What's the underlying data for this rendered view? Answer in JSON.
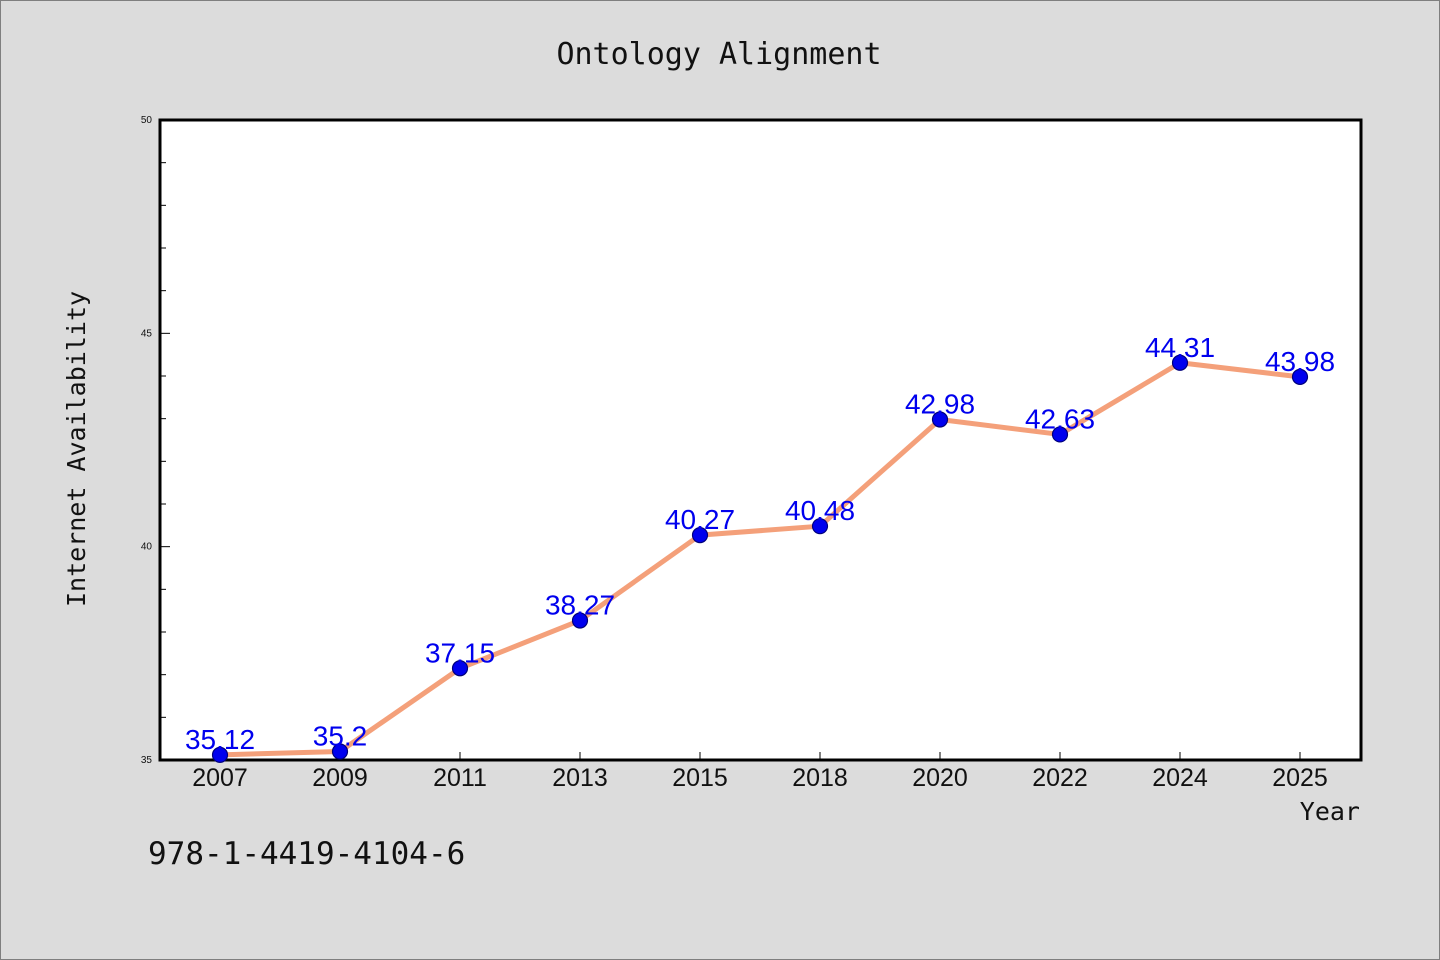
{
  "chart_data": {
    "type": "line",
    "title": "Ontology Alignment",
    "xlabel": "Year",
    "ylabel": "Internet Availability",
    "categories": [
      "2007",
      "2009",
      "2011",
      "2013",
      "2015",
      "2018",
      "2020",
      "2022",
      "2024",
      "2025"
    ],
    "series": [
      {
        "values": [
          35.12,
          35.2,
          37.15,
          38.27,
          40.27,
          40.48,
          42.98,
          42.63,
          44.31,
          43.98
        ]
      }
    ],
    "data_labels": [
      "35.12",
      "35.2",
      "37.15",
      "38.27",
      "40.27",
      "40.48",
      "42.98",
      "42.63",
      "44.31",
      "43.98"
    ],
    "ylim": [
      35,
      50
    ],
    "yticks": [
      35,
      40,
      45,
      50
    ],
    "yticks_minor_step": 1,
    "grid": false,
    "legend": "none",
    "colors": {
      "line": "#f4a07a",
      "marker": "#0000ee",
      "data_label": "#0000ee",
      "plot_background": "#ffffff",
      "figure_background": "#dcdcdc"
    }
  },
  "footer": {
    "isbn": "978-1-4419-4104-6"
  }
}
